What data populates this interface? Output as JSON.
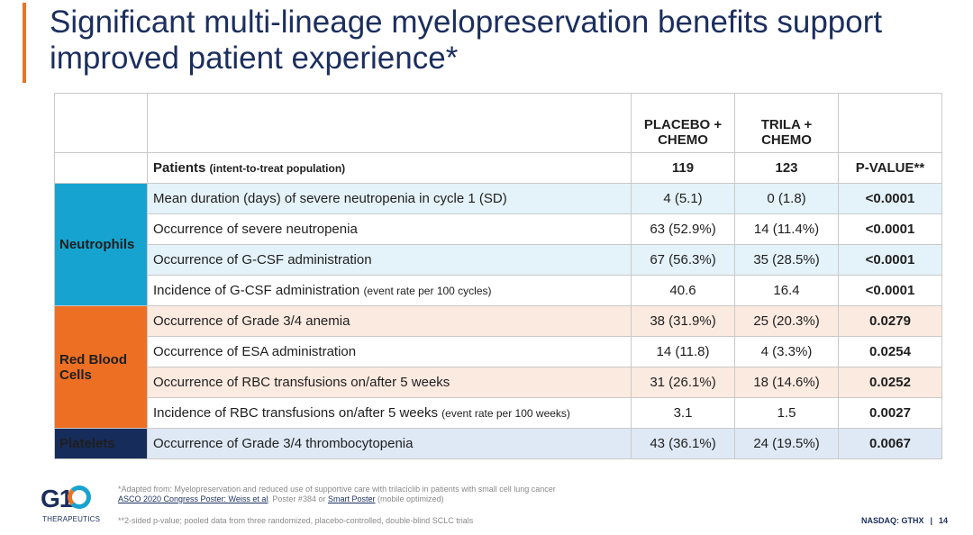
{
  "title": "Significant multi-lineage myelopreservation benefits support improved patient experience*",
  "table": {
    "col_placebo": "PLACEBO + CHEMO",
    "col_trila": "TRILA + CHEMO",
    "col_pvalue": "P-VALUE**",
    "patients_label": "Patients",
    "patients_note": "(intent-to-treat population)",
    "patients_placebo": "119",
    "patients_trila": "123",
    "groups": {
      "neutrophils": "Neutrophils",
      "red_blood_cells": "Red Blood Cells",
      "platelets": "Platelets"
    },
    "rows": [
      {
        "label": "Mean duration (days) of severe neutropenia in cycle 1 (SD)",
        "note": "",
        "placebo": "4 (5.1)",
        "trila": "0 (1.8)",
        "pvalue": "<0.0001"
      },
      {
        "label": "Occurrence of severe neutropenia",
        "note": "",
        "placebo": "63 (52.9%)",
        "trila": "14 (11.4%)",
        "pvalue": "<0.0001"
      },
      {
        "label": "Occurrence of G-CSF administration",
        "note": "",
        "placebo": "67 (56.3%)",
        "trila": "35 (28.5%)",
        "pvalue": "<0.0001"
      },
      {
        "label": "Incidence of G-CSF administration",
        "note": "(event rate per 100 cycles)",
        "placebo": "40.6",
        "trila": "16.4",
        "pvalue": "<0.0001"
      },
      {
        "label": "Occurrence of Grade 3/4 anemia",
        "note": "",
        "placebo": "38 (31.9%)",
        "trila": "25 (20.3%)",
        "pvalue": "0.0279"
      },
      {
        "label": "Occurrence of ESA administration",
        "note": "",
        "placebo": "14 (11.8)",
        "trila": "4 (3.3%)",
        "pvalue": "0.0254"
      },
      {
        "label": "Occurrence of RBC transfusions on/after 5 weeks",
        "note": "",
        "placebo": "31 (26.1%)",
        "trila": "18 (14.6%)",
        "pvalue": "0.0252"
      },
      {
        "label": "Incidence of RBC transfusions on/after 5 weeks",
        "note": "(event rate per 100 weeks)",
        "placebo": "3.1",
        "trila": "1.5",
        "pvalue": "0.0027"
      },
      {
        "label": "Occurrence of Grade 3/4 thrombocytopenia",
        "note": "",
        "placebo": "43 (36.1%)",
        "trila": "24 (19.5%)",
        "pvalue": "0.0067"
      }
    ]
  },
  "footer": {
    "adapted_from": "*Adapted from: Myelopreservation and reduced use of supportive care with trilaciclib in patients with small cell lung cancer",
    "poster_link": "ASCO 2020 Congress Poster: Weiss et al",
    "poster_mid": ". Poster #384 or ",
    "smart_poster_link": "Smart Poster",
    "smart_poster_note": " (mobile optimized)",
    "footnote2": "**2-sided p-value; pooled data from three randomized, placebo-controlled, double-blind SCLC trials",
    "logo_mark": "G1",
    "logo_sub": "THERAPEUTICS",
    "ticker": "NASDAQ: GTHX",
    "separator": "|",
    "page_number": "14"
  },
  "colors": {
    "title": "#1b2e5e",
    "accent": "#e97424",
    "neutrophils": "#17a3cf",
    "red_blood_cells": "#ec6f23",
    "platelets": "#162c5b"
  }
}
